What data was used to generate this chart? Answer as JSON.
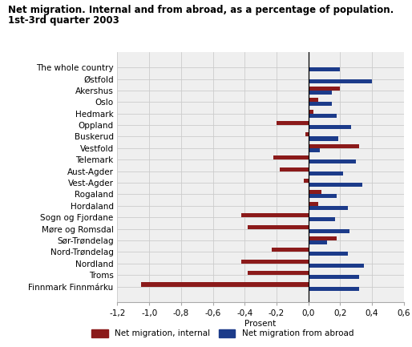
{
  "title": "Net migration. Internal and from abroad, as a percentage of population.",
  "subtitle": "1st-3rd quarter 2003",
  "xlabel": "Prosent",
  "categories": [
    "The whole country",
    "Østfold",
    "Akershus",
    "Oslo",
    "Hedmark",
    "Oppland",
    "Buskerud",
    "Vestfold",
    "Telemark",
    "Aust-Agder",
    "Vest-Agder",
    "Rogaland",
    "Hordaland",
    "Sogn og Fjordane",
    "Møre og Romsdal",
    "Sør-Trøndelag",
    "Nord-Trøndelag",
    "Nordland",
    "Troms",
    "Finnmark Finnmárku"
  ],
  "internal": [
    0.0,
    0.0,
    0.2,
    0.06,
    0.03,
    -0.2,
    -0.02,
    0.32,
    -0.22,
    -0.18,
    -0.03,
    0.08,
    0.06,
    -0.42,
    -0.38,
    0.18,
    -0.23,
    -0.42,
    -0.38,
    -1.05
  ],
  "abroad": [
    0.2,
    0.4,
    0.15,
    0.15,
    0.18,
    0.27,
    0.19,
    0.07,
    0.3,
    0.22,
    0.34,
    0.18,
    0.25,
    0.17,
    0.26,
    0.12,
    0.25,
    0.35,
    0.32,
    0.32
  ],
  "color_internal": "#8B1A1A",
  "color_abroad": "#1C3B8A",
  "xlim": [
    -1.2,
    0.6
  ],
  "xticks": [
    -1.2,
    -1.0,
    -0.8,
    -0.6,
    -0.4,
    -0.2,
    0.0,
    0.2,
    0.4,
    0.6
  ],
  "xtick_labels": [
    "-1,2",
    "-1,0",
    "-0,8",
    "-0,6",
    "-0,4",
    "-0,2",
    "0,0",
    "0,2",
    "0,4",
    "0,6"
  ],
  "legend_internal": "Net migration, internal",
  "legend_abroad": "Net migration from abroad",
  "bg_color": "#ffffff",
  "plot_bg_color": "#efefef",
  "grid_color": "#cccccc",
  "title_fontsize": 8.5,
  "label_fontsize": 7.5,
  "tick_fontsize": 7.5
}
